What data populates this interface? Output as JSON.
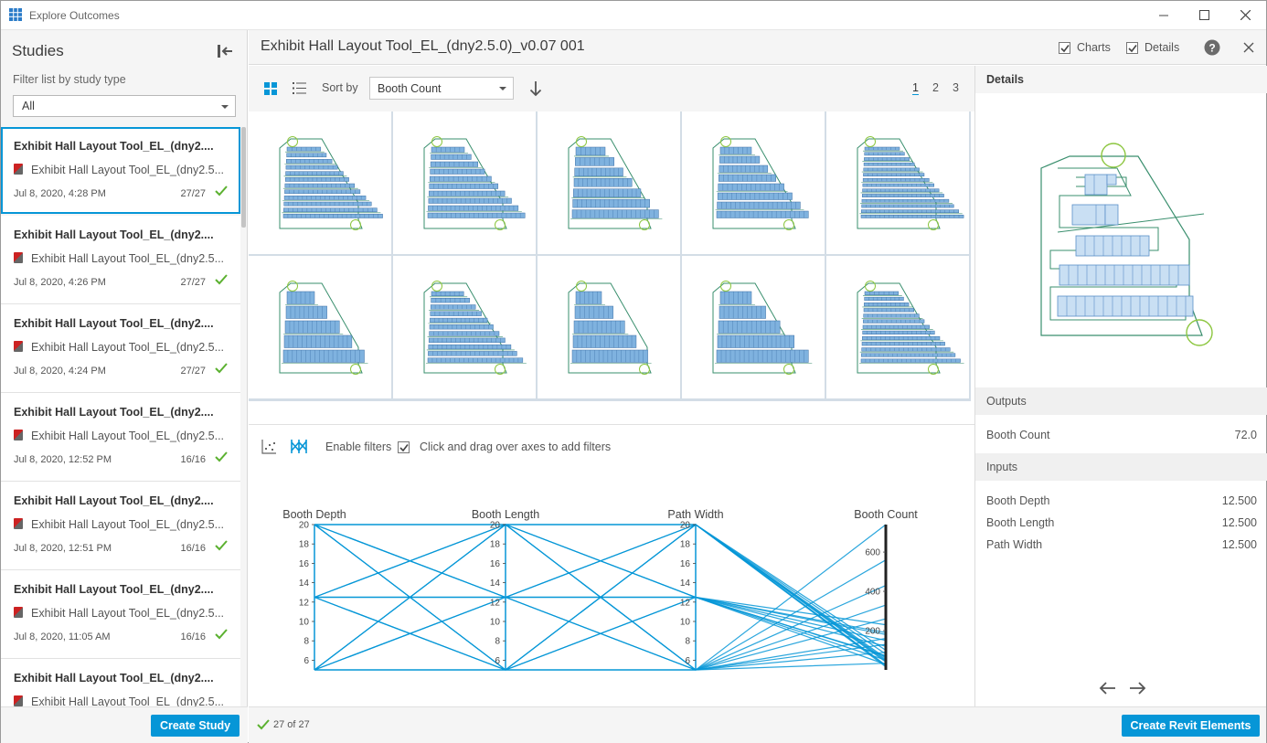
{
  "window": {
    "title": "Explore Outcomes",
    "minimize_icon": "minimize-icon",
    "maximize_icon": "maximize-icon",
    "close_icon": "close-icon"
  },
  "sidebar": {
    "title": "Studies",
    "filter_label": "Filter list by study type",
    "filter_value": "All",
    "studies": [
      {
        "name": "Exhibit Hall Layout Tool_EL_(dny2....",
        "file": "Exhibit Hall Layout Tool_EL_(dny2.5...",
        "date": "Jul 8, 2020, 4:28 PM",
        "count": "27/27",
        "selected": true
      },
      {
        "name": "Exhibit Hall Layout Tool_EL_(dny2....",
        "file": "Exhibit Hall Layout Tool_EL_(dny2.5...",
        "date": "Jul 8, 2020, 4:26 PM",
        "count": "27/27"
      },
      {
        "name": "Exhibit Hall Layout Tool_EL_(dny2....",
        "file": "Exhibit Hall Layout Tool_EL_(dny2.5...",
        "date": "Jul 8, 2020, 4:24 PM",
        "count": "27/27"
      },
      {
        "name": "Exhibit Hall Layout Tool_EL_(dny2....",
        "file": "Exhibit Hall Layout Tool_EL_(dny2.5...",
        "date": "Jul 8, 2020, 12:52 PM",
        "count": "16/16"
      },
      {
        "name": "Exhibit Hall Layout Tool_EL_(dny2....",
        "file": "Exhibit Hall Layout Tool_EL_(dny2.5...",
        "date": "Jul 8, 2020, 12:51 PM",
        "count": "16/16"
      },
      {
        "name": "Exhibit Hall Layout Tool_EL_(dny2....",
        "file": "Exhibit Hall Layout Tool_EL_(dny2.5...",
        "date": "Jul 8, 2020, 11:05 AM",
        "count": "16/16"
      },
      {
        "name": "Exhibit Hall Layout Tool_EL_(dny2....",
        "file": "Exhibit Hall Layout Tool_EL_(dny2.5...",
        "date": "",
        "count": ""
      }
    ],
    "create_study_label": "Create Study"
  },
  "header": {
    "study_title": "Exhibit Hall Layout Tool_EL_(dny2.5.0)_v0.07 001",
    "charts_label": "Charts",
    "charts_checked": true,
    "details_label": "Details",
    "details_checked": true
  },
  "toolbar": {
    "sort_label": "Sort by",
    "sort_value": "Booth Count",
    "pages": [
      "1",
      "2",
      "3"
    ],
    "active_page": "1"
  },
  "chart_controls": {
    "enable_filters_label": "Enable filters",
    "enable_filters_checked": true,
    "hint": "Click and drag over axes to add filters"
  },
  "chart_data": {
    "type": "parallel-coordinates",
    "axes": [
      {
        "name": "Booth Depth",
        "ticks": [
          "20",
          "18",
          "16",
          "14",
          "12",
          "10",
          "8",
          "6"
        ],
        "range": [
          5,
          20
        ]
      },
      {
        "name": "Booth Length",
        "ticks": [
          "20",
          "18",
          "16",
          "14",
          "12",
          "10",
          "8",
          "6"
        ],
        "range": [
          5,
          20
        ]
      },
      {
        "name": "Path Width",
        "ticks": [
          "20",
          "18",
          "16",
          "14",
          "12",
          "10",
          "8",
          "6"
        ],
        "range": [
          5,
          20
        ]
      },
      {
        "name": "Booth Count",
        "ticks": [
          "600",
          "400",
          "200"
        ],
        "range": [
          0,
          740
        ]
      }
    ],
    "lines": [
      [
        20,
        20,
        20,
        46
      ],
      [
        20,
        20,
        12.5,
        28
      ],
      [
        20,
        20,
        5,
        34
      ],
      [
        20,
        12.5,
        20,
        40
      ],
      [
        20,
        12.5,
        12.5,
        70
      ],
      [
        20,
        12.5,
        5,
        90
      ],
      [
        20,
        5,
        20,
        60
      ],
      [
        20,
        5,
        12.5,
        120
      ],
      [
        20,
        5,
        5,
        160
      ],
      [
        12.5,
        20,
        20,
        22
      ],
      [
        12.5,
        20,
        12.5,
        50
      ],
      [
        12.5,
        20,
        5,
        130
      ],
      [
        12.5,
        12.5,
        20,
        52
      ],
      [
        12.5,
        12.5,
        12.5,
        72
      ],
      [
        12.5,
        12.5,
        5,
        260
      ],
      [
        12.5,
        5,
        20,
        100
      ],
      [
        12.5,
        5,
        12.5,
        190
      ],
      [
        12.5,
        5,
        5,
        330
      ],
      [
        5,
        20,
        20,
        16
      ],
      [
        5,
        20,
        12.5,
        180
      ],
      [
        5,
        20,
        5,
        560
      ],
      [
        5,
        12.5,
        20,
        24
      ],
      [
        5,
        12.5,
        12.5,
        150
      ],
      [
        5,
        12.5,
        5,
        430
      ],
      [
        5,
        5,
        20,
        80
      ],
      [
        5,
        5,
        12.5,
        230
      ],
      [
        5,
        5,
        5,
        740
      ]
    ]
  },
  "footer": {
    "count_label": "27 of 27",
    "create_revit_label": "Create Revit Elements"
  },
  "details": {
    "title": "Details",
    "outputs_label": "Outputs",
    "outputs": [
      {
        "label": "Booth Count",
        "value": "72.0"
      }
    ],
    "inputs_label": "Inputs",
    "inputs": [
      {
        "label": "Booth Depth",
        "value": "12.500"
      },
      {
        "label": "Booth Length",
        "value": "12.500"
      },
      {
        "label": "Path Width",
        "value": "12.500"
      }
    ]
  },
  "colors": {
    "accent": "#0696d7",
    "plan_line": "#3a8f6e",
    "booth_fill": "#7fb2df",
    "endpoint": "#8cc63f"
  }
}
